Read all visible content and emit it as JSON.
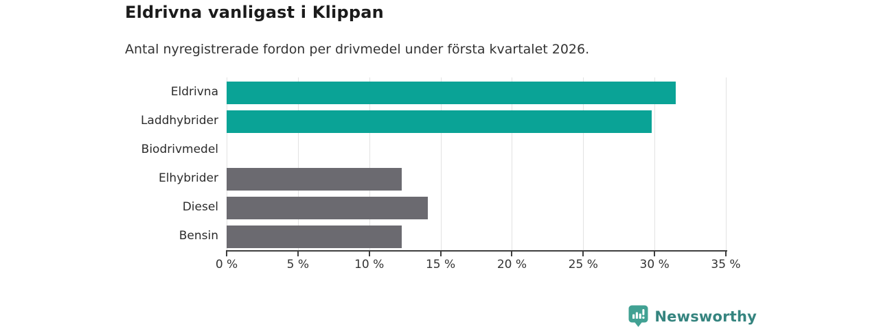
{
  "header": {
    "title": "Eldrivna vanligast i Klippan",
    "subtitle": "Antal nyregistrerade fordon per drivmedel under första kvartalet 2026."
  },
  "chart_data": {
    "type": "bar",
    "orientation": "horizontal",
    "title": "Eldrivna vanligast i Klippan",
    "subtitle": "Antal nyregistrerade fordon per drivmedel under första kvartalet 2026.",
    "categories": [
      "Eldrivna",
      "Laddhybrider",
      "Biodrivmedel",
      "Elhybrider",
      "Diesel",
      "Bensin"
    ],
    "values": [
      31.5,
      29.8,
      0,
      12.3,
      14.1,
      12.3
    ],
    "unit": "%",
    "xlabel": "",
    "ylabel": "",
    "xlim": [
      0,
      35
    ],
    "x_ticks": [
      0,
      5,
      10,
      15,
      20,
      25,
      30,
      35
    ],
    "x_tick_labels": [
      "0 %",
      "5 %",
      "10 %",
      "15 %",
      "20 %",
      "25 %",
      "30 %",
      "35 %"
    ],
    "bar_colors": [
      "#0aa396",
      "#0aa396",
      "#6b6a70",
      "#6b6a70",
      "#6b6a70",
      "#6b6a70"
    ],
    "highlight_color": "#0aa396",
    "default_color": "#6b6a70",
    "grid": true,
    "legend": "none"
  },
  "footer": {
    "brand": "Newsworthy",
    "brand_color": "#35847f",
    "logo_badge_color": "#41a193",
    "logo_icon": "bar-chart-pin-icon"
  }
}
